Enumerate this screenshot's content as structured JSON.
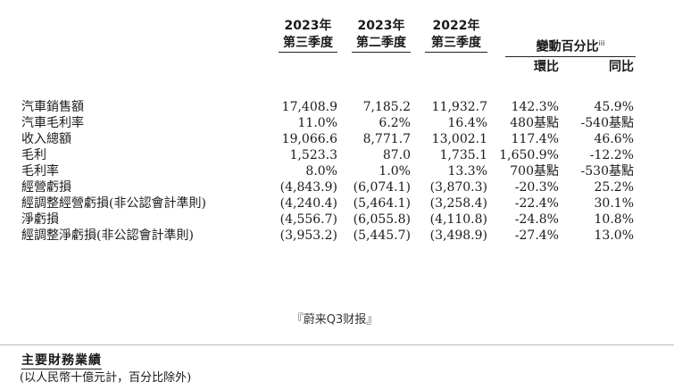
{
  "header": {
    "col_2023q3": {
      "year": "2023年",
      "quarter": "第三季度"
    },
    "col_2023q2": {
      "year": "2023年",
      "quarter": "第二季度"
    },
    "col_2022q3": {
      "year": "2022年",
      "quarter": "第三季度"
    },
    "change_title": "變動百分比",
    "change_note_mark": "iii",
    "qoq": "環比",
    "yoy": "同比"
  },
  "rows": [
    {
      "label": "汽車銷售額",
      "q3_2023": "17,408.9",
      "q2_2023": "7,185.2",
      "q3_2022": "11,932.7",
      "qoq": "142.3%",
      "yoy": "45.9%"
    },
    {
      "label": "汽車毛利率",
      "q3_2023": "11.0%",
      "q2_2023": "6.2%",
      "q3_2022": "16.4%",
      "qoq": "480基點",
      "yoy": "-540基點"
    },
    {
      "label": "收入總額",
      "q3_2023": "19,066.6",
      "q2_2023": "8,771.7",
      "q3_2022": "13,002.1",
      "qoq": "117.4%",
      "yoy": "46.6%"
    },
    {
      "label": "毛利",
      "q3_2023": "1,523.3",
      "q2_2023": "87.0",
      "q3_2022": "1,735.1",
      "qoq": "1,650.9%",
      "yoy": "-12.2%"
    },
    {
      "label": "毛利率",
      "q3_2023": "8.0%",
      "q2_2023": "1.0%",
      "q3_2022": "13.3%",
      "qoq": "700基點",
      "yoy": "-530基點"
    },
    {
      "label": "經營虧損",
      "q3_2023": "(4,843.9)",
      "q2_2023": "(6,074.1)",
      "q3_2022": "(3,870.3)",
      "qoq": "-20.3%",
      "yoy": "25.2%"
    },
    {
      "label": "經調整經營虧損(非公認會計準則)",
      "q3_2023": "(4,240.4)",
      "q2_2023": "(5,464.1)",
      "q3_2022": "(3,258.4)",
      "qoq": "-22.4%",
      "yoy": "30.1%"
    },
    {
      "label": "淨虧損",
      "q3_2023": "(4,556.7)",
      "q2_2023": "(6,055.8)",
      "q3_2022": "(4,110.8)",
      "qoq": "-24.8%",
      "yoy": "10.8%"
    },
    {
      "label": "經調整淨虧損(非公認會計準則)",
      "q3_2023": "(3,953.2)",
      "q2_2023": "(5,445.7)",
      "q3_2022": "(3,498.9)",
      "qoq": "-27.4%",
      "yoy": "13.0%"
    }
  ],
  "caption": "『蔚来Q3财报』",
  "section": {
    "title": "主要財務業績",
    "note": "(以人民幣十億元計，百分比除外)"
  }
}
